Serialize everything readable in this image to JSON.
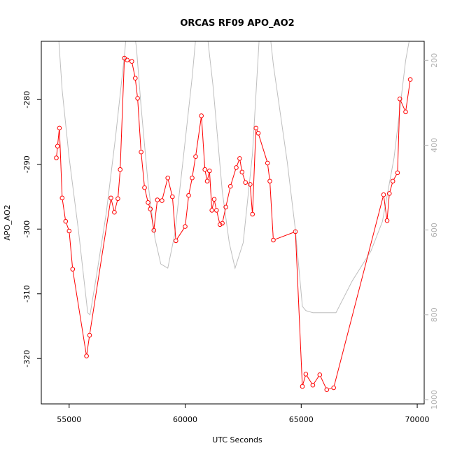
{
  "chart_data": {
    "type": "line",
    "title": "ORCAS RF09 APO_AO2",
    "xlabel": "UTC Seconds",
    "ylabel": "APO_AO2",
    "xlim": [
      53800,
      70300
    ],
    "ylim": [
      -327,
      -271
    ],
    "y2lim": [
      1010,
      155
    ],
    "y2_reversed": true,
    "x_ticks": [
      55000,
      60000,
      65000,
      70000
    ],
    "x_tick_labels": [
      "55000",
      "60000",
      "65000",
      "70000"
    ],
    "y_ticks": [
      -320,
      -310,
      -300,
      -290,
      -280
    ],
    "y_tick_labels": [
      "-320",
      "-310",
      "-300",
      "-290",
      "-280"
    ],
    "y2_ticks": [
      200,
      400,
      600,
      800,
      1000
    ],
    "y2_tick_labels": [
      "200",
      "400",
      "600",
      "800",
      "1000"
    ],
    "colors": {
      "apo": "#ff0000",
      "altitude": "#bebebe",
      "axis": "#000000",
      "right_axis": "#b0b0b0"
    },
    "series": [
      {
        "role": "apo",
        "x": [
          54450,
          54500,
          54580,
          54700,
          54850,
          55000,
          55150,
          55750,
          55880,
          56800,
          56950,
          57100,
          57200,
          57380,
          57500,
          57700,
          57850,
          57950,
          58100,
          58250,
          58400,
          58500,
          58650,
          58800,
          59000,
          59250,
          59450,
          59600,
          60000,
          60150,
          60300,
          60450,
          60700,
          60850,
          60950,
          61050,
          61150,
          61250,
          61350,
          61500,
          61600,
          61750,
          61950,
          62200,
          62350,
          62450,
          62600,
          62800,
          62900,
          63050,
          63150,
          63550,
          63650,
          63800,
          64750,
          65050,
          65200,
          65500,
          65800,
          66100,
          66400,
          68550,
          68700,
          68800,
          68950,
          69150,
          69250,
          69500,
          69700
        ],
        "values": [
          -289,
          -287.2,
          -284.4,
          -295.2,
          -298.8,
          -300.3,
          -306.2,
          -319.6,
          -316.4,
          -295.2,
          -297.4,
          -295.3,
          -290.8,
          -273.6,
          -273.9,
          -274.1,
          -276.7,
          -279.8,
          -288.1,
          -293.6,
          -295.9,
          -296.9,
          -300.2,
          -295.5,
          -295.6,
          -292.1,
          -295,
          -301.8,
          -299.6,
          -294.8,
          -292.1,
          -288.8,
          -282.5,
          -290.8,
          -292.6,
          -291,
          -297.1,
          -295.4,
          -297.1,
          -299.3,
          -299.1,
          -296.6,
          -293.4,
          -290.5,
          -289.1,
          -291.2,
          -292.8,
          -293.1,
          -297.7,
          -284.4,
          -285.2,
          -289.8,
          -292.6,
          -301.7,
          -300.4,
          -324.3,
          -322.4,
          -324.1,
          -322.5,
          -324.8,
          -324.5,
          -294.7,
          -298.7,
          -294.5,
          -292.6,
          -291.3,
          -279.9,
          -281.9,
          -276.9
        ]
      },
      {
        "role": "altitude",
        "x": [
          54550,
          54700,
          55000,
          55400,
          55800,
          55900,
          56200,
          56600,
          57000,
          57400,
          57550,
          57700,
          57900,
          58100,
          58400,
          58700,
          58950,
          59250,
          59550,
          59900,
          60300,
          60550,
          60850,
          61200,
          61600,
          61900,
          62150,
          62500,
          62900,
          63200,
          63500,
          63800,
          64400,
          64750,
          65050,
          65200,
          65500,
          66500,
          67200,
          68000,
          68500,
          69000,
          69500,
          69800
        ],
        "values": [
          150,
          270,
          430,
          600,
          795,
          800,
          700,
          560,
          380,
          180,
          80,
          90,
          170,
          310,
          490,
          620,
          680,
          690,
          610,
          440,
          240,
          90,
          90,
          260,
          510,
          630,
          690,
          630,
          420,
          140,
          60,
          210,
          440,
          600,
          780,
          790,
          795,
          795,
          720,
          650,
          580,
          430,
          200,
          110
        ]
      }
    ]
  }
}
